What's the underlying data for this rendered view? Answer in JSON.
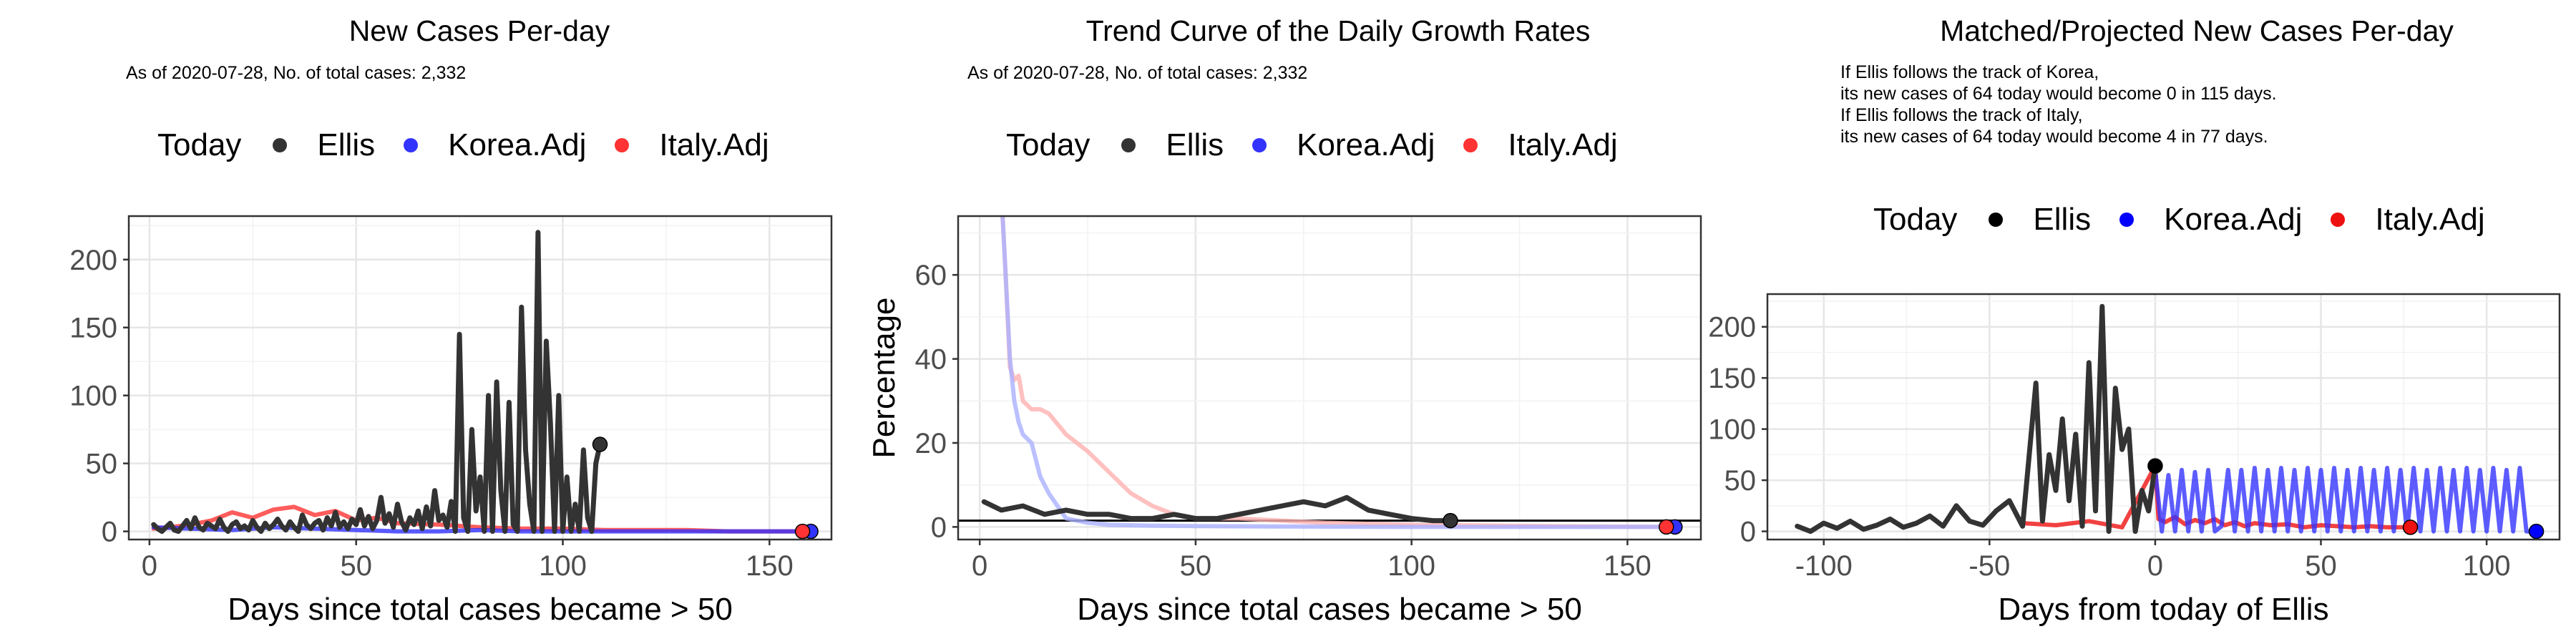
{
  "chart_data": [
    {
      "type": "line",
      "title": "New Cases Per-day",
      "subtitle": "As of 2020-07-28, No. of total cases: 2,332",
      "xlabel": "Days since total cases became > 50",
      "ylabel": "",
      "xlim": [
        -5,
        165
      ],
      "ylim": [
        -6,
        232
      ],
      "xticks": [
        0,
        50,
        100,
        150
      ],
      "yticks": [
        0,
        50,
        100,
        150,
        200
      ],
      "grid": true,
      "legend": {
        "title": "Today",
        "placement": "top",
        "items": [
          {
            "label": "Ellis",
            "color": "#333333"
          },
          {
            "label": "Korea.Adj",
            "color": "#3333ff"
          },
          {
            "label": "Italy.Adj",
            "color": "#ff3333"
          }
        ]
      },
      "series": [
        {
          "name": "Ellis",
          "color": "#333333",
          "x": [
            1,
            2,
            3,
            4,
            5,
            6,
            7,
            8,
            9,
            10,
            11,
            12,
            13,
            14,
            15,
            16,
            17,
            18,
            19,
            20,
            21,
            22,
            23,
            24,
            25,
            26,
            27,
            28,
            29,
            30,
            31,
            32,
            33,
            34,
            35,
            36,
            37,
            38,
            39,
            40,
            41,
            42,
            43,
            44,
            45,
            46,
            47,
            48,
            49,
            50,
            51,
            52,
            53,
            54,
            55,
            56,
            57,
            58,
            59,
            60,
            61,
            62,
            63,
            64,
            65,
            66,
            67,
            68,
            69,
            70,
            71,
            72,
            73,
            74,
            75,
            76,
            77,
            78,
            79,
            80,
            81,
            82,
            83,
            84,
            85,
            86,
            87,
            88,
            89,
            90,
            91,
            92,
            93,
            94,
            95,
            96,
            97,
            98,
            99,
            100,
            101,
            102,
            103,
            104,
            105,
            106,
            107,
            108,
            109
          ],
          "y": [
            5,
            2,
            0,
            3,
            6,
            1,
            0,
            4,
            8,
            2,
            10,
            3,
            1,
            6,
            4,
            2,
            9,
            3,
            0,
            5,
            7,
            2,
            4,
            1,
            8,
            3,
            0,
            6,
            2,
            5,
            9,
            4,
            1,
            7,
            3,
            0,
            12,
            5,
            2,
            6,
            8,
            1,
            10,
            4,
            14,
            3,
            7,
            2,
            9,
            5,
            16,
            4,
            11,
            2,
            8,
            25,
            6,
            13,
            3,
            20,
            7,
            1,
            10,
            5,
            15,
            2,
            18,
            4,
            30,
            8,
            12,
            3,
            22,
            0,
            145,
            10,
            0,
            75,
            15,
            40,
            0,
            100,
            0,
            110,
            30,
            0,
            95,
            5,
            0,
            165,
            60,
            20,
            0,
            220,
            0,
            140,
            80,
            0,
            100,
            0,
            40,
            0,
            20,
            0,
            60,
            10,
            0,
            50,
            64
          ]
        },
        {
          "name": "Korea.Adj",
          "color": "#3333ff",
          "x": [
            1,
            10,
            20,
            30,
            40,
            50,
            60,
            70,
            80,
            90,
            100,
            110,
            120,
            130,
            140,
            150,
            160
          ],
          "y": [
            3,
            2,
            1,
            3,
            2,
            1,
            0,
            0,
            1,
            0,
            0,
            0,
            0,
            0,
            0,
            0,
            0
          ]
        },
        {
          "name": "Italy.Adj",
          "color": "#ff3333",
          "x": [
            1,
            5,
            10,
            15,
            20,
            25,
            30,
            35,
            40,
            45,
            50,
            55,
            60,
            70,
            80,
            90,
            100,
            110,
            120,
            130,
            140,
            150,
            158
          ],
          "y": [
            2,
            3,
            5,
            8,
            14,
            10,
            16,
            18,
            12,
            15,
            8,
            10,
            6,
            5,
            3,
            2,
            2,
            1,
            1,
            1,
            0,
            0,
            0
          ]
        }
      ],
      "today_points": [
        {
          "series": "Ellis",
          "x": 109,
          "y": 64
        },
        {
          "series": "Korea.Adj",
          "x": 160,
          "y": 0
        },
        {
          "series": "Italy.Adj",
          "x": 158,
          "y": 0
        }
      ]
    },
    {
      "type": "line",
      "title": "Trend Curve of the Daily Growth Rates",
      "subtitle": "As of 2020-07-28, No. of total cases: 2,332",
      "xlabel": "Days since total cases became > 50",
      "ylabel": "Percentage",
      "xlim": [
        -5,
        167
      ],
      "ylim": [
        -3,
        74
      ],
      "xticks": [
        0,
        50,
        100,
        150
      ],
      "yticks": [
        0,
        20,
        40,
        60
      ],
      "grid": true,
      "hline": 1.5,
      "legend": {
        "title": "Today",
        "placement": "top",
        "items": [
          {
            "label": "Ellis",
            "color": "#333333"
          },
          {
            "label": "Korea.Adj",
            "color": "#3333ff"
          },
          {
            "label": "Italy.Adj",
            "color": "#ff3333"
          }
        ]
      },
      "series": [
        {
          "name": "Ellis",
          "color": "#333333",
          "x": [
            1,
            5,
            10,
            15,
            20,
            25,
            30,
            35,
            40,
            45,
            50,
            55,
            60,
            65,
            70,
            75,
            80,
            85,
            90,
            95,
            100,
            105,
            109
          ],
          "y": [
            6,
            4,
            5,
            3,
            4,
            3,
            3,
            2,
            2,
            3,
            2,
            2,
            3,
            4,
            5,
            6,
            5,
            7,
            4,
            3,
            2,
            1.5,
            1.5
          ]
        },
        {
          "name": "Korea.Adj",
          "color": "#aab0ff",
          "x": [
            5,
            6,
            7,
            8,
            9,
            10,
            12,
            14,
            16,
            18,
            20,
            25,
            30,
            40,
            50,
            70,
            100,
            130,
            160
          ],
          "y": [
            80,
            60,
            40,
            30,
            25,
            22,
            20,
            12,
            8,
            5,
            2,
            1,
            0.5,
            0.3,
            0.2,
            0.1,
            0,
            0,
            0
          ]
        },
        {
          "name": "Italy.Adj",
          "color": "#ffb0b0",
          "x": [
            5,
            6,
            7,
            8,
            9,
            10,
            12,
            14,
            16,
            20,
            25,
            30,
            35,
            40,
            45,
            50,
            60,
            70,
            80,
            100,
            130,
            158
          ],
          "y": [
            80,
            60,
            38,
            35,
            36,
            30,
            28,
            28,
            27,
            22,
            18,
            13,
            8,
            5,
            3,
            2,
            2,
            1.5,
            1,
            0.5,
            0.2,
            0
          ]
        }
      ],
      "today_points": [
        {
          "series": "Ellis",
          "x": 109,
          "y": 1.5
        },
        {
          "series": "Korea.Adj",
          "x": 161,
          "y": 0
        },
        {
          "series": "Italy.Adj",
          "x": 159,
          "y": 0
        }
      ]
    },
    {
      "type": "line",
      "title": "Matched/Projected New Cases Per-day",
      "notes": [
        "If Ellis follows the track of Korea,",
        "its new cases of 64 today would become 0 in 115 days.",
        "If Ellis follows the track of Italy,",
        "its new cases of 64 today would become 4 in 77 days."
      ],
      "xlabel": "Days from today of Ellis",
      "ylabel": "",
      "xlim": [
        -117,
        122
      ],
      "ylim": [
        -8,
        232
      ],
      "xticks": [
        -100,
        -50,
        0,
        50,
        100
      ],
      "yticks": [
        0,
        50,
        100,
        150,
        200
      ],
      "grid": true,
      "legend": {
        "title": "Today",
        "placement": "top",
        "items": [
          {
            "label": "Ellis",
            "color": "#000000"
          },
          {
            "label": "Korea.Adj",
            "color": "#0000ff"
          },
          {
            "label": "Italy.Adj",
            "color": "#ee1111"
          }
        ]
      },
      "series": [
        {
          "name": "Ellis",
          "color": "#333333",
          "x": [
            -108,
            -104,
            -100,
            -96,
            -92,
            -88,
            -84,
            -80,
            -76,
            -72,
            -68,
            -64,
            -60,
            -56,
            -52,
            -48,
            -44,
            -40,
            -36,
            -34,
            -32,
            -30,
            -28,
            -26,
            -24,
            -22,
            -20,
            -18,
            -16,
            -14,
            -12,
            -10,
            -8,
            -6,
            -4,
            -2,
            0
          ],
          "y": [
            5,
            0,
            8,
            3,
            10,
            2,
            6,
            12,
            4,
            8,
            15,
            5,
            25,
            10,
            6,
            20,
            30,
            5,
            145,
            10,
            75,
            40,
            110,
            30,
            95,
            5,
            165,
            20,
            220,
            0,
            140,
            80,
            100,
            0,
            40,
            20,
            64
          ]
        },
        {
          "name": "Korea.Adj",
          "color": "#3333ff",
          "x": [
            0,
            2,
            4,
            6,
            8,
            10,
            12,
            14,
            16,
            18,
            20,
            22,
            24,
            26,
            28,
            30,
            32,
            34,
            36,
            38,
            40,
            42,
            44,
            46,
            48,
            50,
            52,
            54,
            56,
            58,
            60,
            62,
            64,
            66,
            68,
            70,
            72,
            74,
            76,
            78,
            80,
            82,
            84,
            86,
            88,
            90,
            92,
            94,
            96,
            98,
            100,
            102,
            104,
            106,
            108,
            110,
            112,
            115
          ],
          "y": [
            60,
            0,
            55,
            0,
            60,
            0,
            58,
            0,
            60,
            0,
            5,
            60,
            0,
            60,
            0,
            62,
            0,
            60,
            0,
            62,
            0,
            60,
            0,
            62,
            0,
            60,
            0,
            62,
            0,
            60,
            0,
            62,
            0,
            60,
            0,
            62,
            0,
            60,
            0,
            62,
            0,
            60,
            0,
            62,
            0,
            60,
            0,
            62,
            0,
            60,
            0,
            62,
            0,
            60,
            0,
            62,
            0,
            0
          ]
        },
        {
          "name": "Italy.Adj",
          "color": "#ee1111",
          "x": [
            -40,
            -30,
            -20,
            -10,
            0,
            1,
            3,
            6,
            9,
            12,
            15,
            18,
            21,
            24,
            27,
            30,
            35,
            40,
            45,
            50,
            55,
            60,
            65,
            70,
            77
          ],
          "y": [
            8,
            6,
            10,
            4,
            64,
            12,
            9,
            14,
            7,
            11,
            8,
            12,
            6,
            9,
            5,
            8,
            6,
            7,
            4,
            6,
            5,
            4,
            5,
            4,
            4
          ]
        }
      ],
      "today_points": [
        {
          "series": "Ellis",
          "x": 0,
          "y": 64
        },
        {
          "series": "Korea.Adj",
          "x": 115,
          "y": 0
        },
        {
          "series": "Italy.Adj",
          "x": 77,
          "y": 4
        }
      ]
    }
  ]
}
